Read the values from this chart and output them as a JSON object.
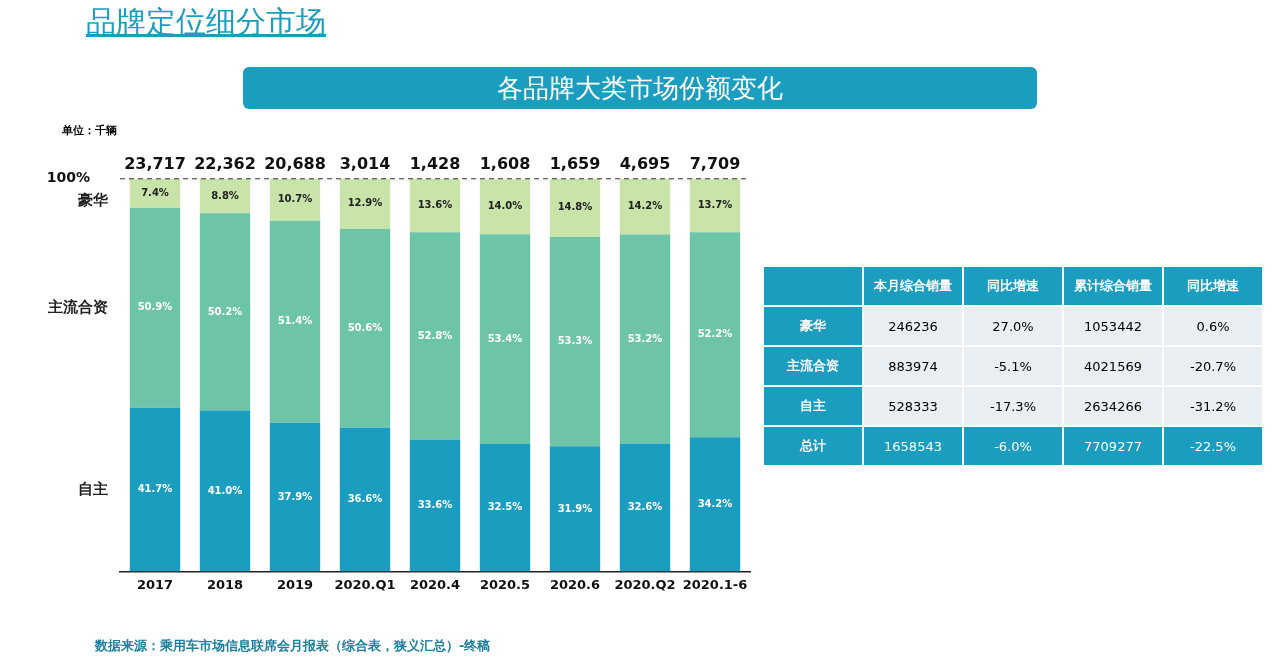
{
  "chart_data": [
    {
      "type": "bar",
      "title": "各品牌大类市场份额变化",
      "subtitle": "品牌定位细分市场",
      "stacked": true,
      "categories": [
        "2017",
        "2018",
        "2019",
        "2020.Q1",
        "2020.4",
        "2020.5",
        "2020.6",
        "2020.Q2",
        "2020.1-6"
      ],
      "series": [
        {
          "name": "自主",
          "color": "#1b9dc0",
          "values": [
            41.7,
            41.0,
            37.9,
            36.6,
            33.6,
            32.5,
            31.9,
            32.6,
            34.2
          ],
          "value_labels": [
            "41.7%",
            "41.0%",
            "37.9%",
            "36.6%",
            "33.6%",
            "32.5%",
            "31.9%",
            "32.6%",
            "34.2%"
          ]
        },
        {
          "name": "主流合资",
          "color": "#6ec4a6",
          "values": [
            50.9,
            50.2,
            51.4,
            50.6,
            52.8,
            53.4,
            53.3,
            53.2,
            52.2
          ],
          "value_labels": [
            "50.9%",
            "50.2%",
            "51.4%",
            "50.6%",
            "52.8%",
            "53.4%",
            "53.3%",
            "53.2%",
            "52.2%"
          ]
        },
        {
          "name": "豪华",
          "color": "#c9e4a9",
          "values": [
            7.4,
            8.8,
            10.7,
            12.9,
            13.6,
            14.0,
            14.8,
            14.2,
            13.7
          ],
          "value_labels": [
            "7.4%",
            "8.8%",
            "10.7%",
            "12.9%",
            "13.6%",
            "14.0%",
            "14.8%",
            "14.2%",
            "13.7%"
          ]
        }
      ],
      "ylim": [
        0,
        100.1
      ],
      "yticks": [
        {
          "value": 100,
          "label": "100%"
        }
      ],
      "ref_lines": [
        {
          "axis": "y",
          "value": 100,
          "label": null,
          "line_style": "dashed",
          "color": "#333333"
        }
      ],
      "grid": false,
      "legend": false,
      "annotations": [
        "单位：千辆",
        "数据来源：乘用车市场信息联席会月报表（综合表，狭义汇总）-终稿",
        {
          "text": "23,717",
          "x": "2017",
          "y": 100
        },
        {
          "text": "22,362",
          "x": "2018",
          "y": 100
        },
        {
          "text": "20,688",
          "x": "2019",
          "y": 100
        },
        {
          "text": "3,014",
          "x": "2020.Q1",
          "y": 100
        },
        {
          "text": "1,428",
          "x": "2020.4",
          "y": 100
        },
        {
          "text": "1,608",
          "x": "2020.5",
          "y": 100
        },
        {
          "text": "1,659",
          "x": "2020.6",
          "y": 100
        },
        {
          "text": "4,695",
          "x": "2020.Q2",
          "y": 100
        },
        {
          "text": "7,709",
          "x": "2020.1-6",
          "y": 100
        }
      ]
    },
    {
      "type": "other",
      "categories": [
        "本月综合销量",
        "同比增速",
        "累计综合销量",
        "同比增速"
      ],
      "y_categories": [
        "豪华",
        "主流合资",
        "自主",
        "总计"
      ],
      "cell_labels": [
        [
          "246236",
          "27.0%",
          "1053442",
          "0.6%"
        ],
        [
          "883974",
          "-5.1%",
          "4021569",
          "-20.7%"
        ],
        [
          "528333",
          "-17.3%",
          "2634266",
          "-31.2%"
        ],
        [
          "1658543",
          "-6.0%",
          "7709277",
          "-22.5%"
        ]
      ]
    }
  ]
}
